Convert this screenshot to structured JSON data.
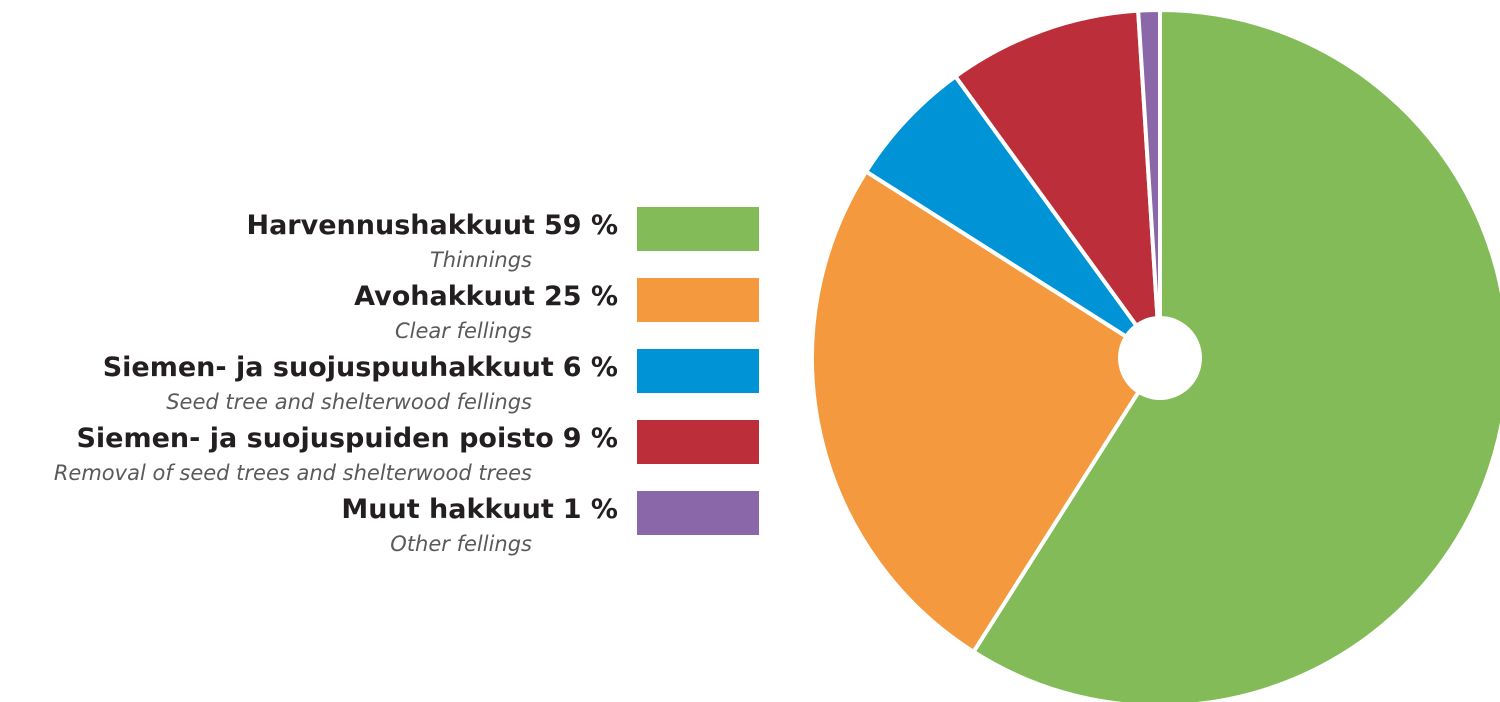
{
  "chart_data": {
    "type": "pie",
    "categories": [
      "Harvennushakkuut",
      "Avohakkuut",
      "Siemen- ja suojuspuuhakkuut",
      "Siemen- ja suojuspuiden poisto",
      "Muut hakkuut"
    ],
    "subcategories": [
      "Thinnings",
      "Clear fellings",
      "Seed tree and shelterwood fellings",
      "Removal of seed trees and shelterwood trees",
      "Other fellings"
    ],
    "values": [
      59,
      25,
      6,
      9,
      1
    ],
    "value_labels": [
      "59 %",
      "25 %",
      "6 %",
      "9 %",
      "1 %"
    ],
    "colors": [
      "#84bb59",
      "#f4993d",
      "#0093d6",
      "#bd2e3b",
      "#8a67a8"
    ],
    "legend": "left"
  }
}
